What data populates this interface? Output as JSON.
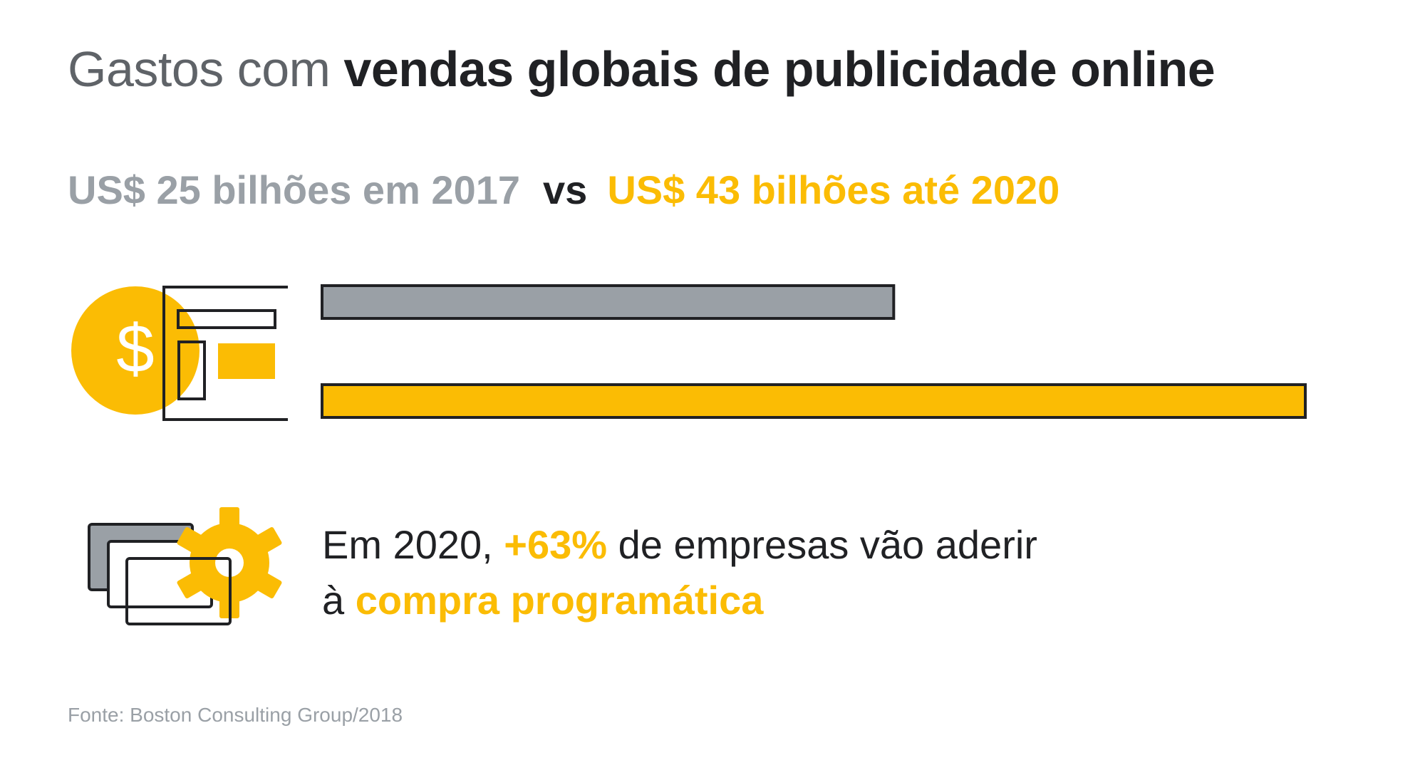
{
  "title": {
    "light": "Gastos com",
    "bold": "vendas globais de publicidade online"
  },
  "comparison": {
    "left": "US$ 25 bilhões em 2017",
    "vs": "vs",
    "right": "US$ 43 bilhões até 2020"
  },
  "chart_data": {
    "type": "bar",
    "orientation": "horizontal",
    "title": "Gastos com vendas globais de publicidade online",
    "unit": "US$ bilhões",
    "categories": [
      "2017",
      "2020"
    ],
    "values": [
      25,
      43
    ],
    "bar_colors": [
      "#9aa0a6",
      "#fbbc04"
    ],
    "xlim": [
      0,
      43
    ],
    "grid": false,
    "legend": "none"
  },
  "stat": {
    "line1_prefix": "Em 2020,",
    "line1_highlight": "+63%",
    "line1_suffix": "de empresas vão aderir",
    "line2_prefix": "à",
    "line2_highlight": "compra programática"
  },
  "icons": {
    "ad_icon": "dollar-ad-icon",
    "programmatic_icon": "programmatic-gear-icon",
    "dollar_symbol": "$"
  },
  "source": "Fonte: Boston Consulting Group/2018",
  "colors": {
    "gray": "#9aa0a6",
    "yellow": "#fbbc04",
    "dark": "#202124",
    "title_light": "#5f6368"
  }
}
